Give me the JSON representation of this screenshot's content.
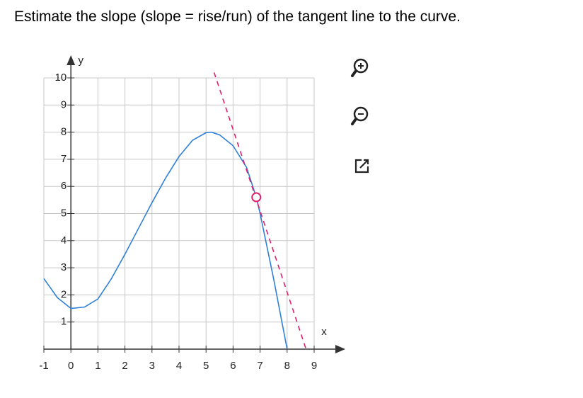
{
  "chart_data": {
    "type": "line",
    "title": "Estimate the slope (slope = rise/run) of the tangent line to the curve.",
    "xlabel": "x",
    "ylabel": "y",
    "xlim": [
      -1,
      9
    ],
    "ylim": [
      0,
      10
    ],
    "xticks": [
      -1,
      0,
      1,
      2,
      3,
      4,
      5,
      6,
      7,
      8,
      9
    ],
    "yticks": [
      1,
      2,
      3,
      4,
      5,
      6,
      7,
      8,
      9,
      10
    ],
    "grid": true,
    "series": [
      {
        "color": "#2f80d8",
        "style": "solid",
        "x": [
          -1,
          -0.5,
          0,
          0.5,
          1,
          1.5,
          2,
          2.5,
          3,
          3.5,
          4,
          4.5,
          5,
          5.2,
          5.5,
          6,
          6.5,
          6.86,
          7,
          7.5,
          8
        ],
        "y": [
          2.6,
          1.9,
          1.5,
          1.55,
          1.85,
          2.6,
          3.5,
          4.45,
          5.4,
          6.3,
          7.1,
          7.7,
          7.98,
          8.0,
          7.9,
          7.5,
          6.7,
          5.6,
          5.0,
          2.6,
          0
        ]
      },
      {
        "color": "#e0206e",
        "style": "dashed",
        "x": [
          5.3,
          8.7
        ],
        "y": [
          10.2,
          0
        ]
      }
    ],
    "point": {
      "x": 6.86,
      "y": 5.6,
      "color": "#e0206e"
    }
  }
}
